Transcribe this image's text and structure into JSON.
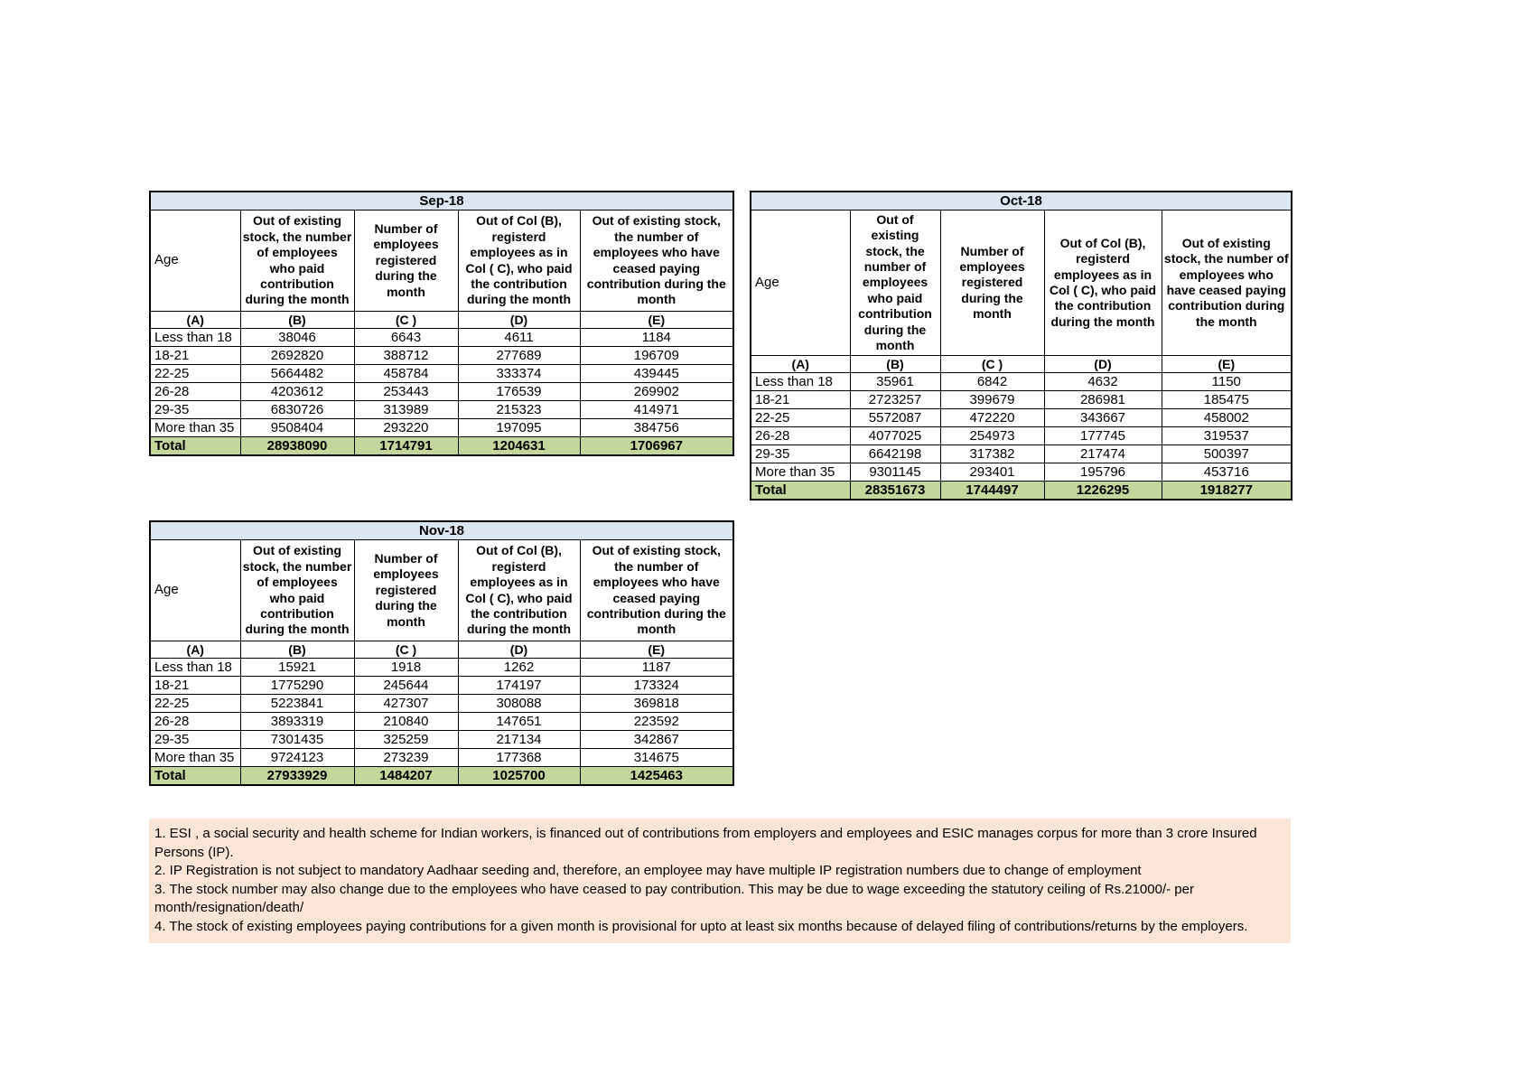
{
  "colors": {
    "title_bar": "#dce6f1",
    "total_row": "#c3d69b",
    "footnote_bg": "#fbe5d6",
    "border_color": "#000000"
  },
  "table_columns": {
    "age_header": "Age",
    "letter_row": [
      "(A)",
      "(B)",
      "(C )",
      "(D)",
      "(E)"
    ],
    "value_headers": [
      "Out of existing stock, the number of employees who paid contribution during the month",
      "Number of employees registered during the month",
      "Out of Col (B), registerd employees as in Col ( C), who paid the contribution during the month",
      "Out of existing stock, the number of  employees  who have ceased paying contribution during the month"
    ]
  },
  "months": [
    {
      "title": "Sep-18",
      "rows": [
        {
          "age": "Less than 18",
          "values": [
            "38046",
            "6643",
            "4611",
            "1184"
          ]
        },
        {
          "age": "18-21",
          "values": [
            "2692820",
            "388712",
            "277689",
            "196709"
          ]
        },
        {
          "age": "22-25",
          "values": [
            "5664482",
            "458784",
            "333374",
            "439445"
          ]
        },
        {
          "age": "26-28",
          "values": [
            "4203612",
            "253443",
            "176539",
            "269902"
          ]
        },
        {
          "age": "29-35",
          "values": [
            "6830726",
            "313989",
            "215323",
            "414971"
          ]
        },
        {
          "age": "More than 35",
          "values": [
            "9508404",
            "293220",
            "197095",
            "384756"
          ]
        }
      ],
      "total": {
        "label": "Total",
        "values": [
          "28938090",
          "1714791",
          "1204631",
          "1706967"
        ]
      }
    },
    {
      "title": "Oct-18",
      "rows": [
        {
          "age": "Less than 18",
          "values": [
            "35961",
            "6842",
            "4632",
            "1150"
          ]
        },
        {
          "age": "18-21",
          "values": [
            "2723257",
            "399679",
            "286981",
            "185475"
          ]
        },
        {
          "age": "22-25",
          "values": [
            "5572087",
            "472220",
            "343667",
            "458002"
          ]
        },
        {
          "age": "26-28",
          "values": [
            "4077025",
            "254973",
            "177745",
            "319537"
          ]
        },
        {
          "age": "29-35",
          "values": [
            "6642198",
            "317382",
            "217474",
            "500397"
          ]
        },
        {
          "age": "More than 35",
          "values": [
            "9301145",
            "293401",
            "195796",
            "453716"
          ]
        }
      ],
      "total": {
        "label": "Total",
        "values": [
          "28351673",
          "1744497",
          "1226295",
          "1918277"
        ]
      }
    },
    {
      "title": "Nov-18",
      "rows": [
        {
          "age": "Less than 18",
          "values": [
            "15921",
            "1918",
            "1262",
            "1187"
          ]
        },
        {
          "age": "18-21",
          "values": [
            "1775290",
            "245644",
            "174197",
            "173324"
          ]
        },
        {
          "age": "22-25",
          "values": [
            "5223841",
            "427307",
            "308088",
            "369818"
          ]
        },
        {
          "age": "26-28",
          "values": [
            "3893319",
            "210840",
            "147651",
            "223592"
          ]
        },
        {
          "age": "29-35",
          "values": [
            "7301435",
            "325259",
            "217134",
            "342867"
          ]
        },
        {
          "age": "More than 35",
          "values": [
            "9724123",
            "273239",
            "177368",
            "314675"
          ]
        }
      ],
      "total": {
        "label": "Total",
        "values": [
          "27933929",
          "1484207",
          "1025700",
          "1425463"
        ]
      }
    }
  ],
  "footnotes": [
    "1. ESI , a social security and health scheme for Indian workers, is financed out of contributions from employers and employees and ESIC manages corpus for more than 3 crore Insured Persons (IP).",
    "2. IP Registration is not subject to mandatory Aadhaar seeding and, therefore, an employee may have multiple IP registration numbers due to change of employment",
    "3. The stock number may also change due to the employees who have ceased to pay contribution. This may  be due to wage exceeding the statutory ceiling of  Rs.21000/- per month/resignation/death/",
    "4. The stock of existing employees paying contributions for a given month is provisional for upto at least six months because of delayed filing of contributions/returns by the employers."
  ]
}
